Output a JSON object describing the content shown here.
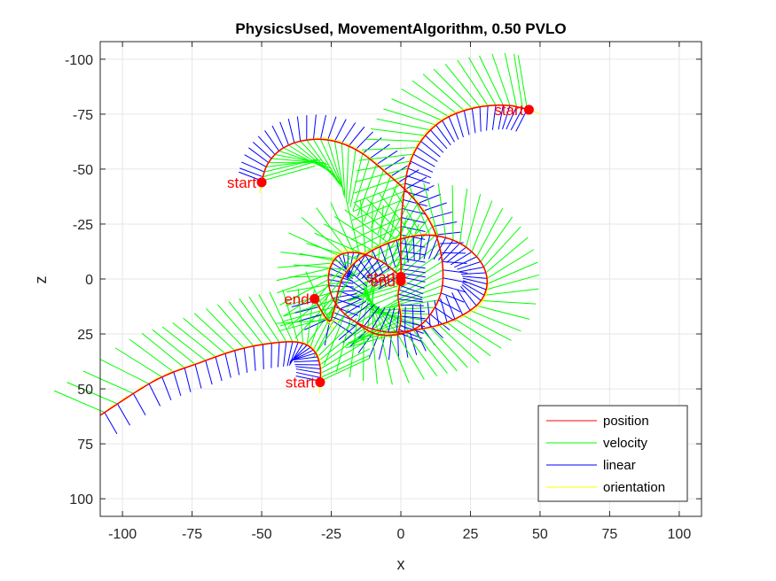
{
  "chart_data": {
    "type": "line",
    "title": "PhysicsUsed, MovementAlgorithm, 0.50 PVLO",
    "xlabel": "x",
    "ylabel": "z",
    "xlim": [
      -108,
      108
    ],
    "ylim": [
      -108,
      108
    ],
    "y_reversed": true,
    "grid": true,
    "xticks": [
      "-100",
      "-75",
      "-50",
      "-25",
      "0",
      "25",
      "50",
      "75",
      "100"
    ],
    "yticks": [
      "-100",
      "-75",
      "-50",
      "-25",
      "0",
      "25",
      "50",
      "75",
      "100"
    ],
    "legend_position": "bottom-right",
    "legend": [
      {
        "label": "position",
        "color": "#ff0000"
      },
      {
        "label": "velocity",
        "color": "#00ff00"
      },
      {
        "label": "linear",
        "color": "#0000ff"
      },
      {
        "label": "orientation",
        "color": "#ffff00"
      }
    ],
    "trajectories": [
      {
        "id": "A",
        "start": [
          -50,
          -44
        ],
        "points": [
          [
            -50,
            -44
          ],
          [
            -48,
            -52
          ],
          [
            -43,
            -59
          ],
          [
            -35,
            -63
          ],
          [
            -25,
            -63
          ],
          [
            -15,
            -58
          ],
          [
            -5,
            -48
          ],
          [
            5,
            -36
          ],
          [
            12,
            -22
          ],
          [
            15,
            -6
          ],
          [
            14,
            8
          ],
          [
            8,
            20
          ],
          [
            0,
            25
          ],
          [
            -9,
            25
          ],
          [
            -16,
            20
          ]
        ]
      },
      {
        "id": "B",
        "start": [
          46,
          -77
        ],
        "points": [
          [
            46,
            -77
          ],
          [
            38,
            -79
          ],
          [
            27,
            -78
          ],
          [
            16,
            -73
          ],
          [
            8,
            -64
          ],
          [
            3,
            -52
          ],
          [
            1,
            -38
          ],
          [
            0,
            -22
          ],
          [
            0,
            -8
          ],
          [
            0,
            0
          ],
          [
            -1,
            8
          ],
          [
            0,
            18
          ],
          [
            -1,
            25
          ]
        ]
      },
      {
        "id": "C",
        "start": [
          0,
          -1
        ],
        "end": [
          0,
          1
        ],
        "points": [
          [
            0,
            -1
          ],
          [
            -7,
            -8
          ],
          [
            -16,
            -12
          ],
          [
            -23,
            -10
          ],
          [
            -26,
            -1
          ],
          [
            -24,
            10
          ],
          [
            -17,
            19
          ],
          [
            -6,
            24
          ],
          [
            6,
            23
          ],
          [
            18,
            19
          ],
          [
            28,
            11
          ],
          [
            31,
            1
          ],
          [
            28,
            -9
          ],
          [
            20,
            -17
          ],
          [
            9,
            -20
          ],
          [
            -3,
            -17
          ],
          [
            -14,
            -10
          ],
          [
            -21,
            0
          ],
          [
            -24,
            14
          ],
          [
            -26,
            19
          ],
          [
            -31,
            9
          ]
        ],
        "end_marker": [
          -31,
          9
        ]
      },
      {
        "id": "D",
        "start": [
          -29,
          47
        ],
        "points": [
          [
            -29,
            47
          ],
          [
            -29,
            40
          ],
          [
            -31,
            33
          ],
          [
            -36,
            29
          ],
          [
            -45,
            29
          ],
          [
            -58,
            32
          ],
          [
            -72,
            38
          ],
          [
            -88,
            46
          ],
          [
            -108,
            62
          ]
        ]
      }
    ],
    "markers": [
      {
        "label": "start",
        "x": -50,
        "z": -44,
        "side": "left"
      },
      {
        "label": "start",
        "x": 46,
        "z": -77,
        "side": "left"
      },
      {
        "label": "start",
        "x": 0,
        "z": -1,
        "side": "left"
      },
      {
        "label": "end",
        "x": 0,
        "z": 1,
        "side": "left"
      },
      {
        "label": "end",
        "x": -31,
        "z": 9,
        "side": "left"
      },
      {
        "label": "start",
        "x": -29,
        "z": 47,
        "side": "left"
      }
    ]
  }
}
